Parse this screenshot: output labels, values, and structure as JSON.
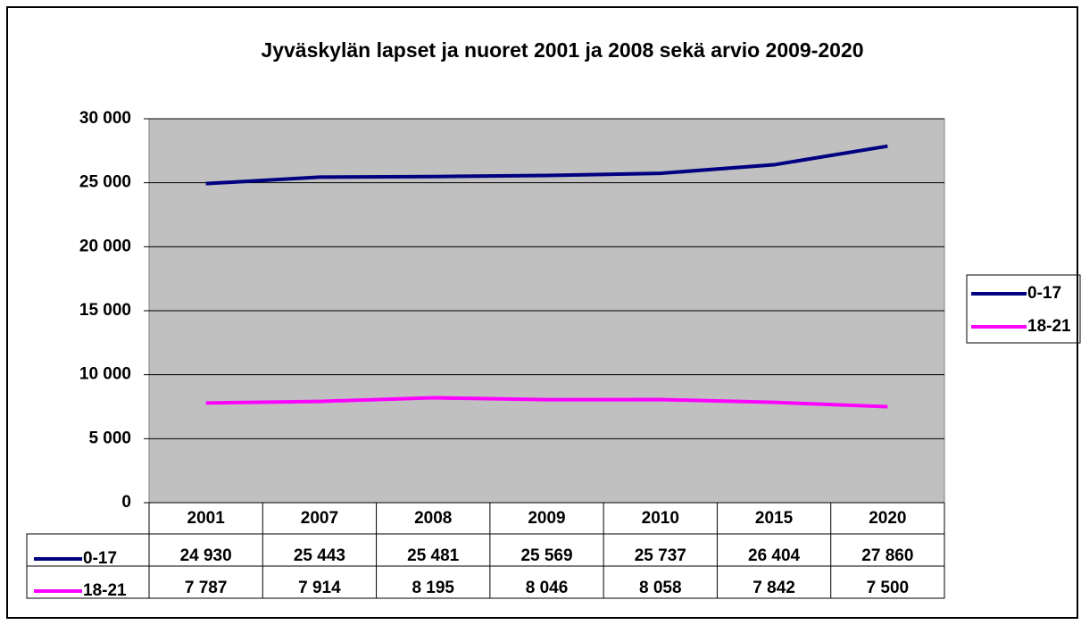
{
  "chart_data": {
    "type": "line",
    "title": "Jyväskylän lapset ja nuoret 2001 ja 2008 sekä arvio 2009-2020",
    "categories": [
      "2001",
      "2007",
      "2008",
      "2009",
      "2010",
      "2015",
      "2020"
    ],
    "series": [
      {
        "name": "0-17",
        "color": "#000080",
        "values": [
          24930,
          25443,
          25481,
          25569,
          25737,
          26404,
          27860
        ],
        "value_labels": [
          "24 930",
          "25 443",
          "25 481",
          "25 569",
          "25 737",
          "26 404",
          "27 860"
        ]
      },
      {
        "name": "18-21",
        "color": "#ff00ff",
        "values": [
          7787,
          7914,
          8195,
          8046,
          8058,
          7842,
          7500
        ],
        "value_labels": [
          "7 787",
          "7 914",
          "8 195",
          "8 046",
          "8 058",
          "7 842",
          "7 500"
        ]
      }
    ],
    "ylim": [
      0,
      30000
    ],
    "yticks": [
      0,
      {
        "value": 5000,
        "label": "5 000"
      },
      {
        "value": 10000,
        "label": "10 000"
      },
      {
        "value": 15000,
        "label": "15 000"
      },
      {
        "value": 20000,
        "label": "20 000"
      },
      {
        "value": 25000,
        "label": "25 000"
      },
      {
        "value": 30000,
        "label": "30 000"
      }
    ],
    "grid": true,
    "legend": "right",
    "plot_background": "#c0c0c0"
  }
}
